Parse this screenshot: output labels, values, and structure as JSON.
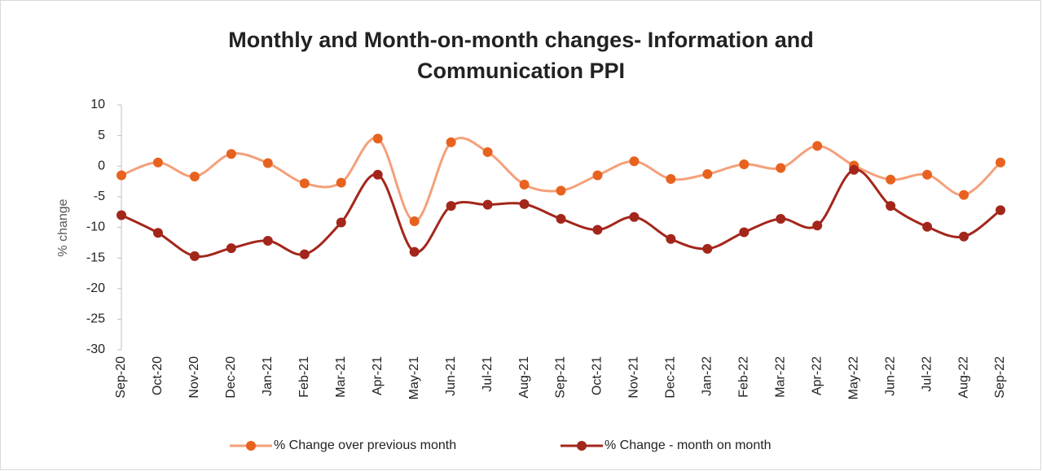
{
  "chart_data": {
    "type": "line",
    "title": "Monthly and Month-on-month changes- Information and Communication PPI",
    "y_label": "% change",
    "categories": [
      "Sep-20",
      "Oct-20",
      "Nov-20",
      "Dec-20",
      "Jan-21",
      "Feb-21",
      "Mar-21",
      "Apr-21",
      "May-21",
      "Jun-21",
      "Jul-21",
      "Aug-21",
      "Sep-21",
      "Oct-21",
      "Nov-21",
      "Dec-21",
      "Jan-22",
      "Feb-22",
      "Mar-22",
      "Apr-22",
      "May-22",
      "Jun-22",
      "Jul-22",
      "Aug-22",
      "Sep-22"
    ],
    "series": [
      {
        "name": "% Change over previous month",
        "color": "#f4a07a",
        "marker_color": "#e8621f",
        "values": [
          -1.5,
          0.6,
          -1.7,
          2.0,
          0.5,
          -2.8,
          -2.7,
          4.5,
          -9.0,
          3.9,
          2.3,
          -3.0,
          -4.0,
          -1.5,
          0.8,
          -2.1,
          -1.3,
          0.3,
          -0.3,
          3.3,
          0.1,
          -2.2,
          -1.4,
          -4.7,
          0.6
        ]
      },
      {
        "name": "% Change - month on month",
        "color": "#a3261b",
        "marker_color": "#a3261b",
        "values": [
          -8.0,
          -10.9,
          -14.7,
          -13.4,
          -12.2,
          -14.4,
          -9.2,
          -1.4,
          -14.0,
          -6.5,
          -6.3,
          -6.2,
          -8.6,
          -10.4,
          -8.3,
          -11.9,
          -13.5,
          -10.8,
          -8.6,
          -9.7,
          -0.6,
          -6.5,
          -9.9,
          -11.5,
          -7.2
        ]
      }
    ],
    "ylim": [
      -30,
      10
    ],
    "yticks": [
      -30,
      -25,
      -20,
      -15,
      -10,
      -5,
      0,
      5,
      10
    ],
    "smooth": true,
    "grid": false,
    "legend": "bottom"
  }
}
